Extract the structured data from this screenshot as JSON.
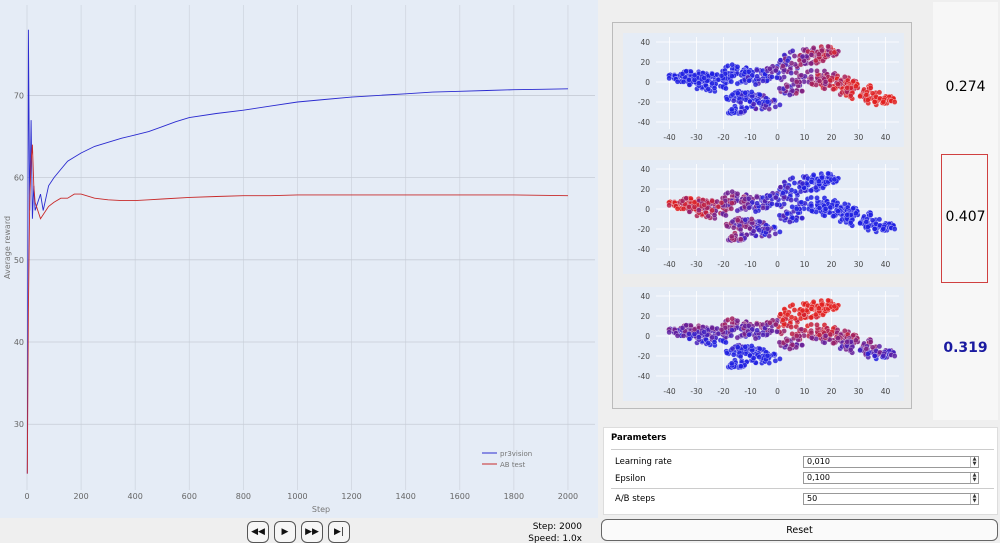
{
  "chart_data": {
    "type": "line",
    "xlabel": "Step",
    "ylabel": "Average reward",
    "xlim": [
      0,
      2100
    ],
    "ylim": [
      22,
      81
    ],
    "x_ticks": [
      0,
      200,
      400,
      600,
      800,
      1000,
      1200,
      1400,
      1600,
      1800,
      2000
    ],
    "y_ticks": [
      30,
      40,
      50,
      60,
      70
    ],
    "grid": true,
    "legend_position": "bottom-right",
    "series": [
      {
        "name": "pr3vision",
        "color": "#2b2bd0",
        "x": [
          1,
          5,
          10,
          15,
          20,
          25,
          30,
          40,
          50,
          60,
          80,
          100,
          125,
          150,
          175,
          200,
          250,
          300,
          350,
          400,
          450,
          500,
          550,
          600,
          700,
          800,
          900,
          1000,
          1100,
          1200,
          1300,
          1400,
          1500,
          1600,
          1700,
          1800,
          1900,
          2000
        ],
        "y": [
          24,
          78,
          56,
          67,
          55,
          59,
          56,
          57,
          58,
          56,
          59,
          60,
          61,
          62,
          62.5,
          63,
          63.8,
          64.3,
          64.8,
          65.2,
          65.6,
          66.2,
          66.8,
          67.3,
          67.8,
          68.2,
          68.7,
          69.2,
          69.5,
          69.8,
          70.0,
          70.2,
          70.4,
          70.5,
          70.6,
          70.7,
          70.75,
          70.8
        ]
      },
      {
        "name": "AB test",
        "color": "#c82a2a",
        "x": [
          1,
          5,
          10,
          15,
          20,
          25,
          30,
          40,
          50,
          60,
          70,
          80,
          100,
          125,
          150,
          175,
          200,
          250,
          300,
          350,
          400,
          450,
          500,
          600,
          700,
          800,
          900,
          1000,
          1200,
          1400,
          1600,
          1800,
          2000
        ],
        "y": [
          24,
          44,
          57,
          62,
          64,
          59,
          57,
          56,
          55,
          55.5,
          56,
          56.5,
          57,
          57.5,
          57.5,
          58,
          58,
          57.5,
          57.3,
          57.2,
          57.2,
          57.3,
          57.4,
          57.6,
          57.7,
          57.8,
          57.8,
          57.9,
          57.9,
          57.9,
          57.9,
          57.9,
          57.8
        ]
      }
    ]
  },
  "controls": {
    "rewind_icon": "rewind-icon",
    "play_icon": "play-icon",
    "fast_forward_icon": "fast-forward-icon",
    "skip_end_icon": "skip-end-icon",
    "step_label": "Step:",
    "step_value": "2000",
    "speed_label": "Speed:",
    "speed_value": "1.0x"
  },
  "scatter_plots": {
    "x_ticks": [
      -40,
      -30,
      -20,
      -10,
      0,
      10,
      20,
      30,
      40
    ],
    "y_ticks": [
      40,
      20,
      0,
      -20,
      -40
    ],
    "color_scale": [
      "#2020e0",
      "#e02020"
    ]
  },
  "scores": [
    {
      "value": "0.274",
      "color": "#000000",
      "bold": false
    },
    {
      "value": "0.407",
      "color": "#000000",
      "bold": false
    },
    {
      "value": "0.319",
      "color": "#1a1aa0",
      "bold": true
    }
  ],
  "parameters": {
    "title": "Parameters",
    "learning_rate": {
      "label": "Learning rate",
      "value": "0,010"
    },
    "epsilon": {
      "label": "Epsilon",
      "value": "0,100"
    },
    "ab_steps": {
      "label": "A/B steps",
      "value": "50"
    }
  },
  "reset_label": "Reset"
}
